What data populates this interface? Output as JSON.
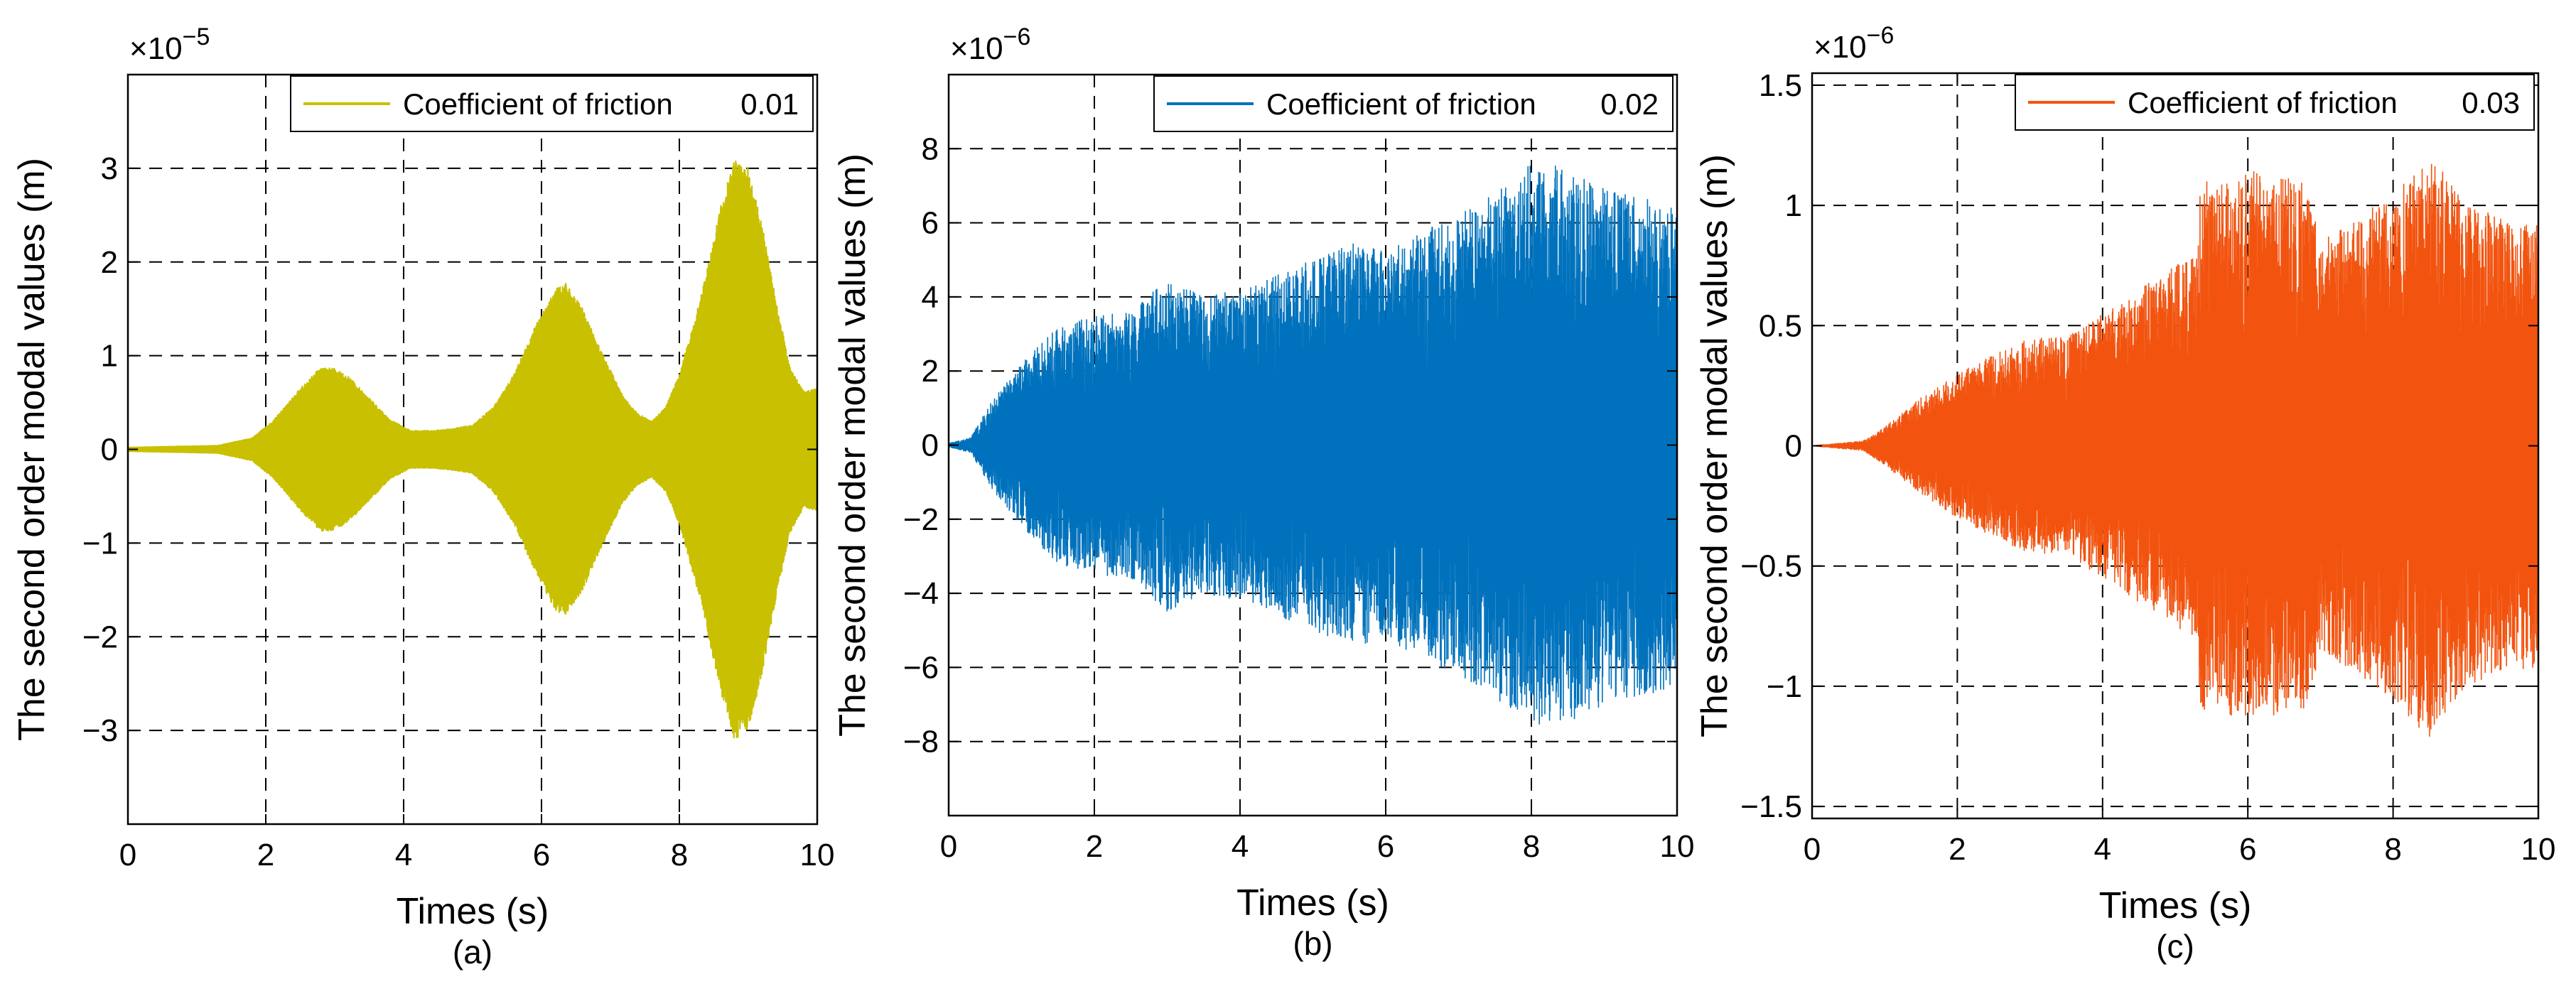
{
  "figure": {
    "background": "#ffffff",
    "grid_color": "#000000"
  },
  "chart_data": [
    {
      "type": "line",
      "panel_label": "(a)",
      "xlabel": "Times (s)",
      "ylabel": "The second order modal values (m)",
      "exponent_label": "×10",
      "exponent_power": "−5",
      "xlim": [
        0,
        10
      ],
      "ylim": [
        -4,
        4
      ],
      "x_ticks": [
        0,
        2,
        4,
        6,
        8,
        10
      ],
      "x_tick_labels": [
        "0",
        "2",
        "4",
        "6",
        "8",
        "10"
      ],
      "y_ticks": [
        -3,
        -2,
        -1,
        0,
        1,
        2,
        3
      ],
      "y_tick_labels": [
        "−3",
        "−2",
        "−1",
        "0",
        "1",
        "2",
        "3"
      ],
      "grid": true,
      "legend": {
        "label": "Coefficient of friction",
        "value": "0.01",
        "position": "top-right"
      },
      "series": [
        {
          "name": "Coefficient of friction 0.01",
          "color": "#c8c000",
          "style": "dense-oscillation",
          "envelope": {
            "t": [
              0,
              1.3,
              1.8,
              2.1,
              2.5,
              2.8,
              3.0,
              3.2,
              3.5,
              3.8,
              4.1,
              4.4,
              4.7,
              5.0,
              5.3,
              5.6,
              5.9,
              6.2,
              6.35,
              6.6,
              6.9,
              7.2,
              7.4,
              7.6,
              7.8,
              8.0,
              8.3,
              8.6,
              8.8,
              9.0,
              9.2,
              9.4,
              9.6,
              9.8,
              10.0
            ],
            "amplitude": [
              0.02,
              0.04,
              0.12,
              0.3,
              0.65,
              0.88,
              0.86,
              0.78,
              0.55,
              0.32,
              0.2,
              0.2,
              0.22,
              0.26,
              0.45,
              0.8,
              1.3,
              1.72,
              1.78,
              1.5,
              1.0,
              0.55,
              0.38,
              0.3,
              0.45,
              0.8,
              1.6,
              2.6,
              3.1,
              3.0,
              2.4,
              1.6,
              0.9,
              0.62,
              0.65
            ]
          }
        }
      ]
    },
    {
      "type": "line",
      "panel_label": "(b)",
      "xlabel": "Times (s)",
      "ylabel": "The second order modal values (m)",
      "exponent_label": "×10",
      "exponent_power": "−6",
      "xlim": [
        0,
        10
      ],
      "ylim": [
        -10,
        10
      ],
      "x_ticks": [
        0,
        2,
        4,
        6,
        8,
        10
      ],
      "x_tick_labels": [
        "0",
        "2",
        "4",
        "6",
        "8",
        "10"
      ],
      "y_ticks": [
        -8,
        -6,
        -4,
        -2,
        0,
        2,
        4,
        6,
        8
      ],
      "y_tick_labels": [
        "−8",
        "−6",
        "−4",
        "−2",
        "0",
        "2",
        "4",
        "6",
        "8"
      ],
      "grid": true,
      "legend": {
        "label": "Coefficient of friction",
        "value": "0.02",
        "position": "top-right"
      },
      "series": [
        {
          "name": "Coefficient of friction 0.02",
          "color": "#0072bd",
          "style": "dense-oscillation",
          "envelope": {
            "t": [
              0,
              0.3,
              0.6,
              1.0,
              1.5,
              2.0,
              2.5,
              3.0,
              3.5,
              4.0,
              4.5,
              5.0,
              5.5,
              6.0,
              6.5,
              7.0,
              7.5,
              8.0,
              8.5,
              9.0,
              9.5,
              10.0
            ],
            "amplitude": [
              0.05,
              0.2,
              1.2,
              2.2,
              3.2,
              3.5,
              3.6,
              4.5,
              4.0,
              4.2,
              4.6,
              5.0,
              5.5,
              5.2,
              5.8,
              6.2,
              6.8,
              7.6,
              7.5,
              7.0,
              6.8,
              6.5
            ]
          }
        }
      ]
    },
    {
      "type": "line",
      "panel_label": "(c)",
      "xlabel": "Times (s)",
      "ylabel": "The second order modal values (m)",
      "exponent_label": "×10",
      "exponent_power": "−6",
      "xlim": [
        0,
        10
      ],
      "ylim": [
        -1.55,
        1.55
      ],
      "x_ticks": [
        0,
        2,
        4,
        6,
        8,
        10
      ],
      "x_tick_labels": [
        "0",
        "2",
        "4",
        "6",
        "8",
        "10"
      ],
      "y_ticks": [
        -1.5,
        -1,
        -0.5,
        0,
        0.5,
        1,
        1.5
      ],
      "y_tick_labels": [
        "−1.5",
        "−1",
        "−0.5",
        "0",
        "0.5",
        "1",
        "1.5"
      ],
      "grid": true,
      "legend": {
        "label": "Coefficient of friction",
        "value": "0.03",
        "position": "top-right"
      },
      "series": [
        {
          "name": "Coefficient of friction 0.03",
          "color": "#f25410",
          "style": "dense-oscillation",
          "envelope": {
            "t": [
              0,
              0.7,
              1.0,
              1.5,
              2.0,
              2.5,
              3.0,
              3.5,
              4.0,
              4.5,
              5.0,
              5.3,
              5.35,
              5.6,
              6.0,
              6.5,
              6.8,
              7.0,
              7.5,
              8.0,
              8.5,
              9.0,
              9.5,
              10.0
            ],
            "amplitude": [
              0.0,
              0.02,
              0.08,
              0.2,
              0.3,
              0.38,
              0.45,
              0.45,
              0.55,
              0.65,
              0.75,
              0.8,
              1.12,
              1.1,
              1.15,
              1.12,
              1.1,
              0.85,
              0.95,
              1.05,
              1.22,
              1.0,
              0.95,
              0.92
            ]
          }
        }
      ]
    }
  ]
}
